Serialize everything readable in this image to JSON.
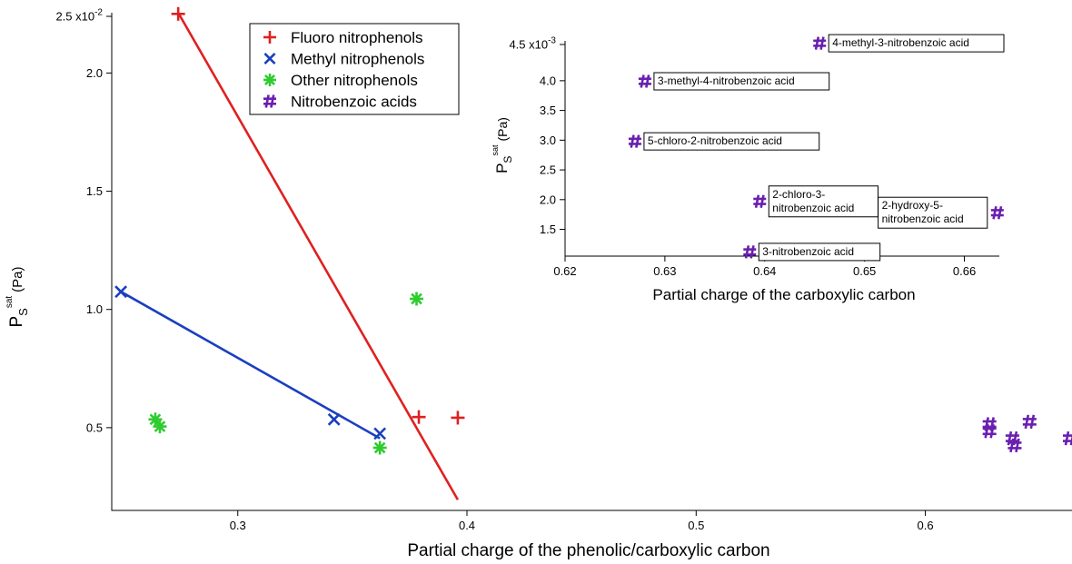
{
  "chart_data": [
    {
      "type": "scatter",
      "title": "",
      "xlabel": "Partial charge of the phenolic/carboxylic carbon",
      "ylabel": {
        "main": "P",
        "sub": "S",
        "sup": "sat",
        "unit": "(Pa)"
      },
      "xlim": [
        0.245,
        0.664
      ],
      "ylim": [
        0.065,
        0.2755
      ],
      "grid": false,
      "legend_position": "top-center",
      "x_ticks": [
        {
          "value": 0.3,
          "label": "0.3"
        },
        {
          "value": 0.4,
          "label": "0.4"
        },
        {
          "value": 0.5,
          "label": "0.5"
        },
        {
          "value": 0.6,
          "label": "0.6"
        }
      ],
      "y_ticks": [
        {
          "value": 0.1,
          "label": "0.5"
        },
        {
          "value": 0.15,
          "label": "1.0"
        },
        {
          "value": 0.2,
          "label": "1.5"
        },
        {
          "value": 0.25,
          "label": "2.0"
        }
      ],
      "y_top_label": {
        "text": "2.5 x10",
        "exponent": "-2"
      },
      "series": [
        {
          "name": "Fluoro nitrophenols",
          "marker": "plus",
          "color": "#e02020",
          "x": [
            0.274,
            0.379,
            0.396
          ],
          "y": [
            0.275,
            0.1045,
            0.1042
          ],
          "fit": {
            "x": [
              0.274,
              0.396
            ],
            "y": [
              0.2755,
              0.0695
            ]
          }
        },
        {
          "name": "Methyl nitrophenols",
          "marker": "cross",
          "color": "#1a3fc0",
          "x": [
            0.249,
            0.342,
            0.362
          ],
          "y": [
            0.1575,
            0.1035,
            0.0975
          ],
          "fit": {
            "x": [
              0.249,
              0.362
            ],
            "y": [
              0.1575,
              0.0955
            ]
          }
        },
        {
          "name": "Other nitrophenols",
          "marker": "asterisk",
          "color": "#2ecc2e",
          "x": [
            0.264,
            0.266,
            0.378,
            0.362
          ],
          "y": [
            0.1035,
            0.1005,
            0.1545,
            0.0915
          ],
          "fit": null
        },
        {
          "name": "Nitrobenzoic acids",
          "marker": "hash",
          "color": "#6a1fb0",
          "x": [
            0.628,
            0.628,
            0.638,
            0.639,
            0.6455,
            0.663
          ],
          "y": [
            0.1015,
            0.0985,
            0.0955,
            0.0925,
            0.1025,
            0.0955
          ],
          "fit": null
        }
      ]
    },
    {
      "type": "scatter",
      "title": "",
      "xlabel": "Partial charge of the carboxylic carbon",
      "ylabel": {
        "main": "P",
        "sub": "S",
        "sup": "sat",
        "unit": "(Pa)"
      },
      "xlim": [
        0.62,
        0.6635
      ],
      "ylim": [
        0.00105,
        0.00467
      ],
      "grid": false,
      "x_ticks": [
        {
          "value": 0.62,
          "label": "0.62"
        },
        {
          "value": 0.63,
          "label": "0.63"
        },
        {
          "value": 0.64,
          "label": "0.64"
        },
        {
          "value": 0.65,
          "label": "0.65"
        },
        {
          "value": 0.66,
          "label": "0.66"
        }
      ],
      "y_ticks": [
        {
          "value": 0.0015,
          "label": "1.5"
        },
        {
          "value": 0.002,
          "label": "2.0"
        },
        {
          "value": 0.0025,
          "label": "2.5"
        },
        {
          "value": 0.003,
          "label": "3.0"
        },
        {
          "value": 0.0035,
          "label": "3.5"
        },
        {
          "value": 0.004,
          "label": "4.0"
        }
      ],
      "y_top_label": {
        "text": "4.5 x10",
        "exponent": "-3"
      },
      "series": [
        {
          "name": "Nitrobenzoic acids",
          "marker": "hash",
          "color": "#6a1fb0",
          "points": [
            {
              "x": 0.6455,
              "y": 0.00463,
              "label": [
                "4-methyl-3-nitrobenzoic acid"
              ],
              "label_side": "right"
            },
            {
              "x": 0.628,
              "y": 0.00399,
              "label": [
                "3-methyl-4-nitrobenzoic acid"
              ],
              "label_side": "right"
            },
            {
              "x": 0.627,
              "y": 0.00298,
              "label": [
                "5-chloro-2-nitrobenzoic acid"
              ],
              "label_side": "right"
            },
            {
              "x": 0.6395,
              "y": 0.00197,
              "label": [
                "2-chloro-3-",
                "nitrobenzoic acid"
              ],
              "label_side": "right"
            },
            {
              "x": 0.6633,
              "y": 0.00178,
              "label": [
                "2-hydroxy-5-",
                "nitrobenzoic acid"
              ],
              "label_side": "left"
            },
            {
              "x": 0.6385,
              "y": 0.00112,
              "label": [
                "3-nitrobenzoic acid"
              ],
              "label_side": "right"
            }
          ]
        }
      ]
    }
  ]
}
